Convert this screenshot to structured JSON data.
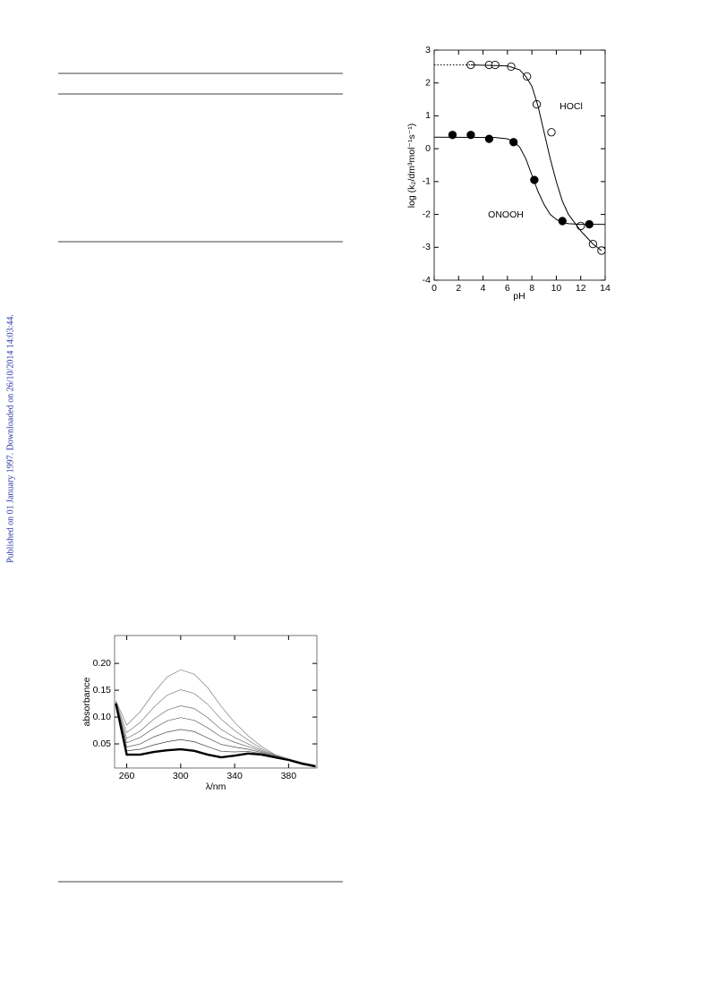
{
  "watermark": "Published on 01 January 1997. Downloaded on 26/10/2014 14:03:44.",
  "chart_data": [
    {
      "type": "line",
      "x_label": "pH",
      "y_label": "log (k₂/dm³mol⁻¹s⁻¹)",
      "annotations": [
        "HOCl",
        "ONOOH"
      ],
      "xlim": [
        0,
        14
      ],
      "xticks": [
        0,
        2,
        4,
        6,
        8,
        10,
        12,
        14
      ],
      "ylim": [
        -4,
        3
      ],
      "yticks": [
        -4,
        -3,
        -2,
        -1,
        0,
        1,
        2,
        3
      ],
      "series": [
        {
          "style": "open-marker",
          "color": "#000000",
          "x": [
            3,
            4.5,
            5,
            6.3,
            7.6,
            8.4,
            9.6,
            12,
            13,
            13.7
          ],
          "values": [
            2.55,
            2.55,
            2.55,
            2.5,
            2.2,
            1.35,
            0.5,
            -2.35,
            -2.9,
            -3.1
          ]
        },
        {
          "style": "filled-marker",
          "color": "#000000",
          "x": [
            1.5,
            3,
            4.5,
            6.5,
            8.2,
            10.5,
            12.7
          ],
          "values": [
            0.42,
            0.42,
            0.3,
            0.2,
            -0.95,
            -2.2,
            -2.3
          ]
        },
        {
          "style": "dotted-line",
          "color": "#000000",
          "x": [
            0,
            3
          ],
          "values": [
            2.55,
            2.55
          ]
        },
        {
          "style": "solid-line",
          "color": "#000000",
          "x": [
            3,
            6,
            7,
            7.5,
            8,
            8.5,
            9,
            9.5,
            10,
            10.5,
            11,
            12,
            12.5,
            13,
            13.7
          ],
          "values": [
            2.55,
            2.52,
            2.4,
            2.2,
            1.9,
            1.3,
            0.5,
            -0.3,
            -1.0,
            -1.6,
            -2.0,
            -2.5,
            -2.7,
            -2.9,
            -3.1
          ]
        },
        {
          "style": "solid-line",
          "color": "#000000",
          "x": [
            0,
            5,
            6,
            6.5,
            7,
            7.5,
            8,
            8.5,
            9,
            9.5,
            10,
            10.5,
            11,
            12,
            14
          ],
          "values": [
            0.35,
            0.34,
            0.3,
            0.22,
            0.05,
            -0.3,
            -0.8,
            -1.3,
            -1.7,
            -2.0,
            -2.15,
            -2.25,
            -2.28,
            -2.3,
            -2.3
          ]
        }
      ]
    },
    {
      "type": "line",
      "x_label": "λ/nm",
      "y_label": "absorbance",
      "xlim": [
        251,
        401
      ],
      "xticks": [
        260,
        300,
        340,
        380
      ],
      "ylim": [
        0.005,
        0.252
      ],
      "yticks": [
        0.05,
        {
          "value": 0.1,
          "label": "0.10"
        },
        0.15,
        {
          "value": 0.2,
          "label": "0.20"
        }
      ],
      "series": [
        {
          "style": "solid-line",
          "color": "#808080",
          "x": [
            252,
            260,
            270,
            280,
            290,
            300,
            310,
            320,
            330,
            340,
            350,
            360,
            370,
            380,
            390,
            400
          ],
          "values": [
            0.13,
            0.085,
            0.11,
            0.145,
            0.175,
            0.188,
            0.18,
            0.155,
            0.12,
            0.09,
            0.065,
            0.045,
            0.03,
            0.022,
            0.015,
            0.01
          ]
        },
        {
          "style": "solid-line",
          "color": "#808080",
          "x": [
            252,
            260,
            270,
            280,
            290,
            300,
            310,
            320,
            330,
            340,
            350,
            360,
            370,
            380,
            390,
            400
          ],
          "values": [
            0.129,
            0.071,
            0.09,
            0.118,
            0.141,
            0.151,
            0.144,
            0.124,
            0.096,
            0.075,
            0.057,
            0.041,
            0.029,
            0.022,
            0.015,
            0.01
          ]
        },
        {
          "style": "solid-line",
          "color": "#707070",
          "x": [
            252,
            260,
            270,
            280,
            290,
            300,
            310,
            320,
            330,
            340,
            350,
            360,
            370,
            380,
            390,
            400
          ],
          "values": [
            0.128,
            0.06,
            0.074,
            0.096,
            0.113,
            0.121,
            0.116,
            0.099,
            0.077,
            0.062,
            0.05,
            0.038,
            0.028,
            0.021,
            0.014,
            0.009
          ]
        },
        {
          "style": "solid-line",
          "color": "#606060",
          "x": [
            252,
            260,
            270,
            280,
            290,
            300,
            310,
            320,
            330,
            340,
            350,
            360,
            370,
            380,
            390,
            400
          ],
          "values": [
            0.127,
            0.052,
            0.062,
            0.079,
            0.093,
            0.099,
            0.094,
            0.08,
            0.063,
            0.053,
            0.045,
            0.036,
            0.027,
            0.021,
            0.014,
            0.009
          ]
        },
        {
          "style": "solid-line",
          "color": "#505050",
          "x": [
            252,
            260,
            270,
            280,
            290,
            300,
            310,
            320,
            330,
            340,
            350,
            360,
            370,
            380,
            390,
            400
          ],
          "values": [
            0.126,
            0.044,
            0.05,
            0.063,
            0.072,
            0.077,
            0.073,
            0.061,
            0.049,
            0.044,
            0.04,
            0.034,
            0.026,
            0.02,
            0.014,
            0.009
          ]
        },
        {
          "style": "solid-line",
          "color": "#404040",
          "x": [
            252,
            260,
            270,
            280,
            290,
            300,
            310,
            320,
            330,
            340,
            350,
            360,
            370,
            380,
            390,
            400
          ],
          "values": [
            0.126,
            0.037,
            0.04,
            0.048,
            0.054,
            0.058,
            0.054,
            0.045,
            0.036,
            0.035,
            0.036,
            0.032,
            0.026,
            0.02,
            0.013,
            0.008
          ]
        },
        {
          "style": "solid-line",
          "color": "#000000",
          "x": [
            252,
            260,
            270,
            280,
            290,
            300,
            310,
            320,
            330,
            340,
            350,
            360,
            370,
            380,
            390,
            400
          ],
          "values": [
            0.125,
            0.03,
            0.03,
            0.035,
            0.038,
            0.04,
            0.037,
            0.03,
            0.025,
            0.028,
            0.032,
            0.03,
            0.025,
            0.02,
            0.013,
            0.008
          ]
        }
      ]
    }
  ]
}
